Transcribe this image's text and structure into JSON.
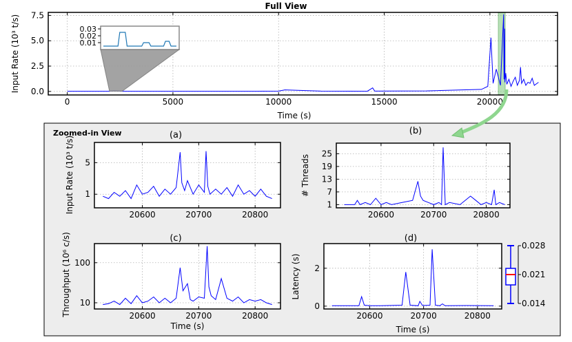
{
  "colors": {
    "line": "#0000ff",
    "zoom_panel_bg": "#ededed",
    "highlight": "#7ec87e",
    "arrow": "#8fd68f",
    "grid": "#b0b0b0",
    "box_median": "#ff0000"
  },
  "chart_data": [
    {
      "id": "full",
      "type": "line",
      "title": "Full View",
      "xlabel": "Time (s)",
      "ylabel": "Input Rate (10³ t/s)",
      "xlim": [
        -900,
        23200
      ],
      "ylim": [
        -0.35,
        7.8
      ],
      "xticks": [
        0,
        5000,
        10000,
        15000,
        20000
      ],
      "xtick_labels": [
        "0",
        "5000",
        "10000",
        "15000",
        "20000"
      ],
      "yticks": [
        0,
        2.5,
        5,
        7.5
      ],
      "ytick_labels": [
        "0.0",
        "2.5",
        "5.0",
        "7.5"
      ],
      "grid": true,
      "x": [
        0,
        2000,
        2200,
        2600,
        9000,
        10000,
        10300,
        12000,
        14200,
        14450,
        14550,
        17000,
        19600,
        19900,
        20050,
        20150,
        20300,
        20500,
        20650,
        20670,
        20700,
        20710,
        20750,
        20800,
        20900,
        21000,
        21100,
        21200,
        21300,
        21400,
        21450,
        21500,
        21600,
        21700,
        21800,
        21900,
        22000,
        22100,
        22300
      ],
      "y": [
        0.02,
        0.02,
        0.08,
        0.02,
        0.02,
        0.03,
        0.15,
        0.03,
        0.02,
        0.35,
        0.03,
        0.05,
        0.2,
        0.5,
        5.3,
        0.8,
        2.2,
        0.6,
        7.6,
        1.2,
        6.2,
        0.9,
        1.8,
        0.7,
        1.2,
        0.5,
        1.0,
        1.4,
        0.6,
        1.1,
        2.4,
        0.8,
        1.2,
        0.6,
        0.9,
        0.8,
        1.3,
        0.6,
        0.9
      ],
      "highlight_range": [
        20400,
        20720
      ],
      "inset": {
        "yticks": [
          0.01,
          0.02,
          0.03
        ],
        "ytick_labels": [
          "0.01",
          "0.02",
          "0.03"
        ],
        "x": [
          0,
          8,
          9,
          12,
          13,
          21,
          22,
          25,
          26,
          33,
          34,
          36,
          37,
          38,
          40
        ],
        "y": [
          0.005,
          0.005,
          0.025,
          0.025,
          0.005,
          0.005,
          0.01,
          0.01,
          0.005,
          0.005,
          0.012,
          0.012,
          0.005,
          0.005,
          0.005
        ]
      }
    },
    {
      "id": "a",
      "type": "line",
      "panel_label": "(a)",
      "zoom_title": "Zoomed-in View",
      "xlabel": "",
      "ylabel": "Input Rate (10³ t/s)",
      "scale": "log",
      "xlim": [
        20515,
        20845
      ],
      "ylim": [
        0.5,
        14
      ],
      "xticks": [
        20600,
        20700,
        20800
      ],
      "xtick_labels": [
        "20600",
        "20700",
        "20800"
      ],
      "yticks": [
        1,
        5
      ],
      "ytick_labels": [
        "1",
        "5"
      ],
      "grid": true,
      "x": [
        20530,
        20540,
        20550,
        20560,
        20570,
        20580,
        20590,
        20600,
        20610,
        20620,
        20630,
        20640,
        20650,
        20660,
        20667,
        20670,
        20675,
        20680,
        20690,
        20700,
        20710,
        20713,
        20716,
        20720,
        20730,
        20740,
        20750,
        20760,
        20770,
        20780,
        20790,
        20800,
        20810,
        20820,
        20830
      ],
      "y": [
        0.9,
        0.8,
        1.1,
        0.9,
        1.2,
        0.8,
        1.6,
        1.0,
        1.1,
        1.5,
        0.9,
        1.3,
        1.0,
        1.4,
        8.5,
        1.8,
        1.2,
        2.0,
        1.0,
        1.6,
        1.1,
        9.0,
        1.5,
        1.0,
        1.3,
        1.0,
        1.4,
        0.9,
        1.6,
        1.0,
        1.2,
        0.9,
        1.3,
        0.9,
        0.8
      ]
    },
    {
      "id": "b",
      "type": "line",
      "panel_label": "(b)",
      "xlabel": "",
      "ylabel": "# Threads",
      "scale": "linear",
      "xlim": [
        20515,
        20845
      ],
      "ylim": [
        -0.5,
        30
      ],
      "xticks": [
        20600,
        20700,
        20800
      ],
      "xtick_labels": [
        "20600",
        "20700",
        "20800"
      ],
      "yticks": [
        1,
        7,
        13,
        19,
        25
      ],
      "ytick_labels": [
        "1",
        "7",
        "13",
        "19",
        "25"
      ],
      "grid": true,
      "x": [
        20530,
        20550,
        20555,
        20560,
        20570,
        20580,
        20590,
        20600,
        20610,
        20620,
        20640,
        20660,
        20670,
        20675,
        20680,
        20690,
        20700,
        20710,
        20715,
        20718,
        20722,
        20730,
        20750,
        20770,
        20780,
        20790,
        20800,
        20810,
        20815,
        20818,
        20825,
        20835
      ],
      "y": [
        1,
        1,
        3,
        1,
        2,
        1,
        4,
        1,
        2,
        1,
        2,
        3,
        12,
        5,
        3,
        2,
        1,
        2,
        1,
        28,
        1,
        2,
        1,
        5,
        3,
        1,
        2,
        1,
        8,
        1,
        2,
        1
      ]
    },
    {
      "id": "c",
      "type": "line",
      "panel_label": "(c)",
      "xlabel": "Time (s)",
      "ylabel": "Throughput (10⁶ c/s)",
      "scale": "log",
      "xlim": [
        20515,
        20845
      ],
      "ylim": [
        7,
        300
      ],
      "xticks": [
        20600,
        20700,
        20800
      ],
      "xtick_labels": [
        "20600",
        "20700",
        "20800"
      ],
      "yticks": [
        10,
        100
      ],
      "ytick_labels": [
        "10",
        "100"
      ],
      "grid": true,
      "x": [
        20530,
        20540,
        20550,
        20560,
        20570,
        20580,
        20590,
        20600,
        20610,
        20620,
        20630,
        20640,
        20650,
        20660,
        20667,
        20672,
        20680,
        20685,
        20690,
        20700,
        20710,
        20715,
        20718,
        20722,
        20730,
        20740,
        20750,
        20760,
        20770,
        20780,
        20790,
        20800,
        20810,
        20820,
        20830
      ],
      "y": [
        9,
        9.5,
        11,
        9,
        13,
        9.5,
        15,
        10,
        11,
        14,
        10,
        13,
        10,
        13,
        75,
        20,
        30,
        12,
        11,
        14,
        13,
        260,
        25,
        15,
        12,
        40,
        13,
        11,
        14,
        10,
        12,
        11,
        12,
        10,
        9
      ]
    },
    {
      "id": "d",
      "type": "line",
      "panel_label": "(d)",
      "xlabel": "Time (s)",
      "ylabel": "Latency (s)",
      "scale": "linear",
      "xlim": [
        20515,
        20845
      ],
      "ylim": [
        -0.15,
        3.3
      ],
      "xticks": [
        20600,
        20700,
        20800
      ],
      "xtick_labels": [
        "20600",
        "20700",
        "20800"
      ],
      "yticks": [
        0,
        2
      ],
      "ytick_labels": [
        "0",
        "2"
      ],
      "grid": true,
      "x": [
        20530,
        20580,
        20585,
        20590,
        20600,
        20620,
        20660,
        20667,
        20675,
        20690,
        20693,
        20698,
        20712,
        20716,
        20722,
        20730,
        20735,
        20740,
        20780,
        20830
      ],
      "y": [
        0.02,
        0.02,
        0.5,
        0.05,
        0.02,
        0.02,
        0.05,
        1.8,
        0.05,
        0.02,
        0.25,
        0.03,
        0.05,
        3.0,
        0.05,
        0.02,
        0.12,
        0.02,
        0.03,
        0.02
      ]
    },
    {
      "id": "d_box",
      "type": "box",
      "yticks": [
        0.014,
        0.021,
        0.028
      ],
      "ytick_labels": [
        "0.014",
        "0.021",
        "0.028"
      ],
      "ylim": [
        0.014,
        0.028
      ],
      "q1": 0.0185,
      "median": 0.021,
      "q3": 0.0225,
      "whisker_low": 0.014,
      "whisker_high": 0.028
    }
  ]
}
